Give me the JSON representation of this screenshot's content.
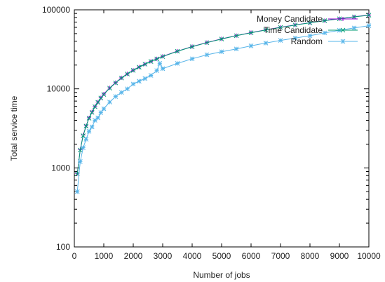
{
  "chart_data": {
    "type": "line",
    "xlabel": "Number of jobs",
    "ylabel": "Total service time",
    "xlim": [
      0,
      10000
    ],
    "ylim": [
      100,
      100000
    ],
    "yscale": "log",
    "grid": false,
    "legend_position": "top-right",
    "x_ticks": [
      "0",
      "1000",
      "2000",
      "3000",
      "4000",
      "5000",
      "6000",
      "7000",
      "8000",
      "9000",
      "10000"
    ],
    "y_ticks": [
      "100",
      "1000",
      "10000",
      "100000"
    ],
    "series": [
      {
        "name": "Money Candidate",
        "color": "#9400d3",
        "marker": "plus",
        "x": [
          100,
          200,
          300,
          400,
          500,
          600,
          700,
          800,
          900,
          1000,
          1200,
          1400,
          1600,
          1800,
          2000,
          2200,
          2400,
          2600,
          2800,
          3000,
          3500,
          4000,
          4500,
          5000,
          5500,
          6000,
          6500,
          7000,
          7500,
          8000,
          8500,
          9000,
          9500,
          10000
        ],
        "y": [
          850,
          1700,
          2600,
          3400,
          4300,
          5100,
          6000,
          6800,
          7700,
          8600,
          10300,
          12000,
          13800,
          15500,
          17200,
          18900,
          20600,
          22300,
          24000,
          25800,
          30000,
          34300,
          38600,
          42900,
          47200,
          51500,
          55800,
          60100,
          64400,
          68700,
          73000,
          77300,
          81600,
          86000
        ]
      },
      {
        "name": "Time Candidate",
        "color": "#009e73",
        "marker": "cross",
        "x": [
          100,
          200,
          300,
          400,
          500,
          600,
          700,
          800,
          900,
          1000,
          1200,
          1400,
          1600,
          1800,
          2000,
          2200,
          2400,
          2600,
          2800,
          3000,
          3500,
          4000,
          4500,
          5000,
          5500,
          6000,
          6500,
          7000,
          7500,
          8000,
          8500,
          9000,
          9500,
          10000
        ],
        "y": [
          840,
          1680,
          2550,
          3380,
          4250,
          5050,
          5950,
          6750,
          7650,
          8500,
          10200,
          11900,
          13700,
          15400,
          17100,
          18800,
          20500,
          22200,
          23900,
          25600,
          29900,
          34100,
          38400,
          42700,
          47000,
          51300,
          55600,
          59900,
          64200,
          68500,
          72800,
          77100,
          81400,
          85500
        ]
      },
      {
        "name": "Random",
        "color": "#56b4e9",
        "marker": "star",
        "x": [
          100,
          200,
          300,
          400,
          500,
          600,
          700,
          800,
          900,
          1000,
          1200,
          1400,
          1600,
          1800,
          2000,
          2200,
          2400,
          2600,
          2800,
          2900,
          3000,
          3500,
          4000,
          4500,
          5000,
          5500,
          6000,
          6500,
          7000,
          7500,
          8000,
          8500,
          9000,
          9500,
          10000
        ],
        "y": [
          500,
          1200,
          1800,
          2300,
          2900,
          3300,
          4000,
          4300,
          5000,
          5600,
          6800,
          8000,
          9000,
          10000,
          11500,
          12500,
          13500,
          14800,
          17000,
          21000,
          18000,
          21000,
          24000,
          27000,
          29500,
          32000,
          35000,
          38000,
          41000,
          44000,
          47000,
          51000,
          55000,
          59000,
          63000
        ]
      }
    ]
  }
}
